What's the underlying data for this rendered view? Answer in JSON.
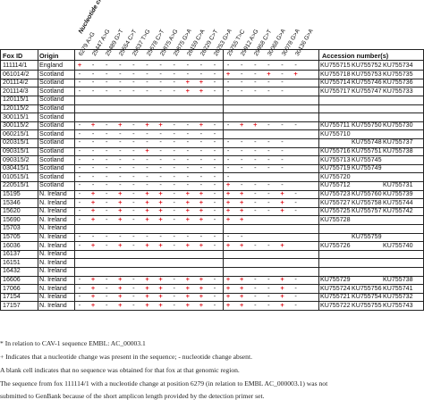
{
  "headers": {
    "fox_id": "Fox ID",
    "origin": "Origin",
    "nucleotide_change": "Nucleotide change*",
    "accession": "Accession number(s)"
  },
  "positions": [
    "6279 A>G",
    "25447 A>G",
    "25489 G>T",
    "25554 C>T",
    "25637 T>G",
    "25678 C>T",
    "25875 A>G",
    "25875 G>A",
    "26159 C>A",
    "26229 C>T",
    "26253 G>A",
    "29755 T>C",
    "29912 A>G",
    "29958 C>T",
    "30068 G>A",
    "30078 G>A",
    "30136 G>A"
  ],
  "rows": [
    {
      "id": "111114/1",
      "origin": "England",
      "marks": "+----------------",
      "acc": [
        "KU755715",
        "KU755752",
        "KU755734"
      ]
    },
    {
      "id": "061014/2",
      "origin": "Scotland",
      "marks": "-----------+--+-+",
      "acc": [
        "KU755718",
        "KU755753",
        "KU755735"
      ]
    },
    {
      "id": "201114/2",
      "origin": "Scotland",
      "marks": "--------++------",
      "acc": [
        "KU755714",
        "KU755746",
        "KU755736"
      ]
    },
    {
      "id": "201114/3",
      "origin": "Scotland",
      "marks": "--------++------",
      "acc": [
        "KU755717",
        "KU755747",
        "KU755733"
      ]
    },
    {
      "id": "120115/1",
      "origin": "Scotland",
      "marks": "",
      "acc": [
        "",
        "",
        ""
      ]
    },
    {
      "id": "120115/2",
      "origin": "Scotland",
      "marks": "",
      "acc": [
        "",
        "",
        ""
      ]
    },
    {
      "id": "300115/1",
      "origin": "Scotland",
      "marks": "",
      "acc": [
        "",
        "",
        ""
      ]
    },
    {
      "id": "300115/2",
      "origin": "Scotland",
      "marks": "-+-+-++--+--++---",
      "acc": [
        "KU755711",
        "KU755750",
        "KU755730"
      ]
    },
    {
      "id": "060215/1",
      "origin": "Scotland",
      "marks": "-----------",
      "acc": [
        "KU755710",
        "",
        ""
      ]
    },
    {
      "id": "020315/1",
      "origin": "Scotland",
      "marks": "----------------",
      "acc": [
        "",
        "KU755748",
        "KU755737"
      ]
    },
    {
      "id": "090315/1",
      "origin": "Scotland",
      "marks": "-----+----------",
      "acc": [
        "KU755716",
        "KU755751",
        "KU755738"
      ]
    },
    {
      "id": "090315/2",
      "origin": "Scotland",
      "marks": "----------------",
      "acc": [
        "KU755713",
        "KU755745",
        ""
      ]
    },
    {
      "id": "030415/1",
      "origin": "Scotland",
      "marks": "----------------",
      "acc": [
        "KU755719",
        "KU755749",
        ""
      ]
    },
    {
      "id": "010515/1",
      "origin": "Scotland",
      "marks": "------------",
      "acc": [
        "KU755720",
        "",
        ""
      ]
    },
    {
      "id": "220515/1",
      "origin": "Scotland",
      "marks": "-----------+----",
      "acc": [
        "KU755712",
        "",
        "KU755731"
      ]
    },
    {
      "id": "15195",
      "origin": "N. Ireland",
      "marks": "-+-+-++-++-++--+-",
      "acc": [
        "KU755723",
        "KU755760",
        "KU755739"
      ]
    },
    {
      "id": "15346",
      "origin": "N. Ireland",
      "marks": "-+-+-++-++-++--+-",
      "acc": [
        "KU755727",
        "KU755758",
        "KU755744"
      ]
    },
    {
      "id": "15620",
      "origin": "N. Ireland",
      "marks": "-+-+-++-++-++--+-",
      "acc": [
        "KU755725",
        "KU755757",
        "KU755742"
      ]
    },
    {
      "id": "15690",
      "origin": "N. Ireland",
      "marks": "-+-+-++-++-++",
      "acc": [
        "KU755728",
        "",
        ""
      ]
    },
    {
      "id": "15703",
      "origin": "N. Ireland",
      "marks": "",
      "acc": [
        "",
        "",
        ""
      ]
    },
    {
      "id": "15705",
      "origin": "N. Ireland",
      "marks": "-------------",
      "acc": [
        "",
        "KU755759",
        ""
      ]
    },
    {
      "id": "16036",
      "origin": "N. Ireland",
      "marks": "-+-+-++-++-++--+",
      "acc": [
        "KU755726",
        "",
        "KU755740"
      ]
    },
    {
      "id": "16137",
      "origin": "N. Ireland",
      "marks": "",
      "acc": [
        "",
        "",
        ""
      ]
    },
    {
      "id": "16151",
      "origin": "N. Ireland",
      "marks": "",
      "acc": [
        "",
        "",
        ""
      ]
    },
    {
      "id": "16432",
      "origin": "N. Ireland",
      "marks": "",
      "acc": [
        "",
        "",
        ""
      ]
    },
    {
      "id": "16606",
      "origin": "N. Ireland",
      "marks": "-+-+-++-++-++--+-",
      "acc": [
        "KU755729",
        "",
        "KU755738"
      ]
    },
    {
      "id": "17066",
      "origin": "N. Ireland",
      "marks": "-+-+-++-++-++--+-",
      "acc": [
        "KU755724",
        "KU755756",
        "KU755741"
      ]
    },
    {
      "id": "17154",
      "origin": "N. Ireland",
      "marks": "-+-+-++-++-++--+-",
      "acc": [
        "KU755721",
        "KU755754",
        "KU755732"
      ]
    },
    {
      "id": "17157",
      "origin": "N. Ireland",
      "marks": "-+-+-++-++-++--+-",
      "acc": [
        "KU755722",
        "KU755755",
        "KU755743"
      ]
    }
  ],
  "footnotes": [
    "* In relation to CAV-1 sequence EMBL: AC_00003.1",
    "+ Indicates that a nucleotide change was present in the sequence; - nucleotide change absent.",
    "A blank cell indicates that no sequence was obtained for that fox at that genomic region.",
    "The sequence from fox 111114/1 with a nucleotide change at position 6279 (in relation to EMBL AC_000003.1) was not",
    "submitted to GenBank because of the short amplicon length provided by the detection primer set."
  ],
  "colors": {
    "plus": "#e0161f",
    "minus": "#222222",
    "rule": "#222222"
  }
}
